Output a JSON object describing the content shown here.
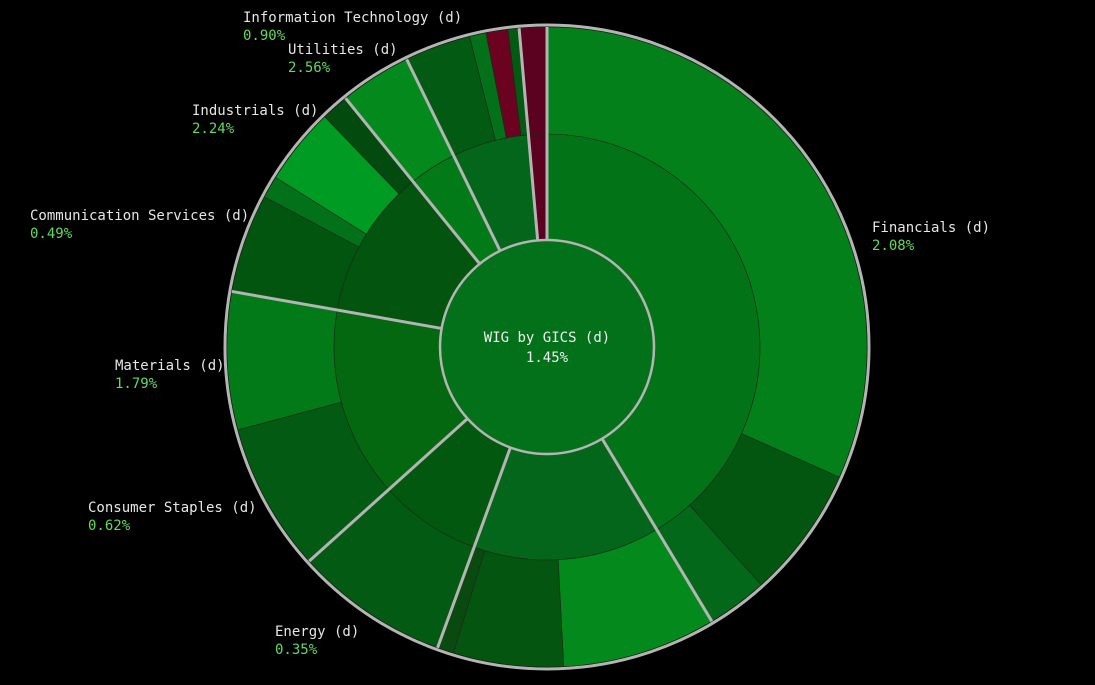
{
  "chart_data": {
    "type": "sunburst",
    "title": "WIG by GICS (d)",
    "change": 1.45,
    "change_label": "1.45%",
    "center_color": "#03701a",
    "categories": [
      "Financials",
      "Energy (d)",
      "Consumer Staples (d)",
      "Materials (d)",
      "Communication Services (d)",
      "Industrials (d)",
      "Utilities (d)",
      "Information Technology (d)"
    ],
    "names": [
      "Financials (d)",
      "Energy (d)",
      "Consumer Staples (d)",
      "Materials (d)",
      "Communication Services (d)",
      "Industrials (d)",
      "Utilities (d)",
      "Information Technology (d)"
    ],
    "values": [
      149,
      51,
      28,
      52,
      41,
      13,
      21,
      5
    ],
    "changes": [
      2.08,
      0.35,
      0.62,
      1.79,
      0.49,
      2.24,
      2.56,
      0.9
    ],
    "change_labels": [
      "2.08%",
      "0.35%",
      "0.62%",
      "1.79%",
      "0.49%",
      "2.24%",
      "2.56%",
      "0.90%"
    ],
    "colors": [
      "#037318",
      "#03661a",
      "#03580f",
      "#03680f",
      "#03540f",
      "#037a18",
      "#03661a",
      "#5a0220"
    ],
    "children": [
      {
        "values": [
          114,
          24,
          11
        ],
        "colors": [
          "#03801a",
          "#02560f",
          "#03681a"
        ]
      },
      {
        "values": [
          28,
          20,
          3
        ],
        "colors": [
          "#048a1c",
          "#035510",
          "#0a4a10"
        ]
      },
      {
        "values": [
          28
        ],
        "colors": [
          "#035a12"
        ]
      },
      {
        "values": [
          27,
          25
        ],
        "colors": [
          "#035a12",
          "#037a18"
        ]
      },
      {
        "values": [
          18,
          4,
          14,
          5
        ],
        "colors": [
          "#02550e",
          "#03701a",
          "#009b22",
          "#024a0e"
        ]
      },
      {
        "values": [
          13
        ],
        "colors": [
          "#048a1c"
        ]
      },
      {
        "values": [
          12,
          3,
          4,
          2
        ],
        "colors": [
          "#035a12",
          "#03701a",
          "#6a0220",
          "#035a12"
        ]
      },
      {
        "values": [
          5
        ],
        "colors": [
          "#5a0220"
        ]
      }
    ]
  }
}
